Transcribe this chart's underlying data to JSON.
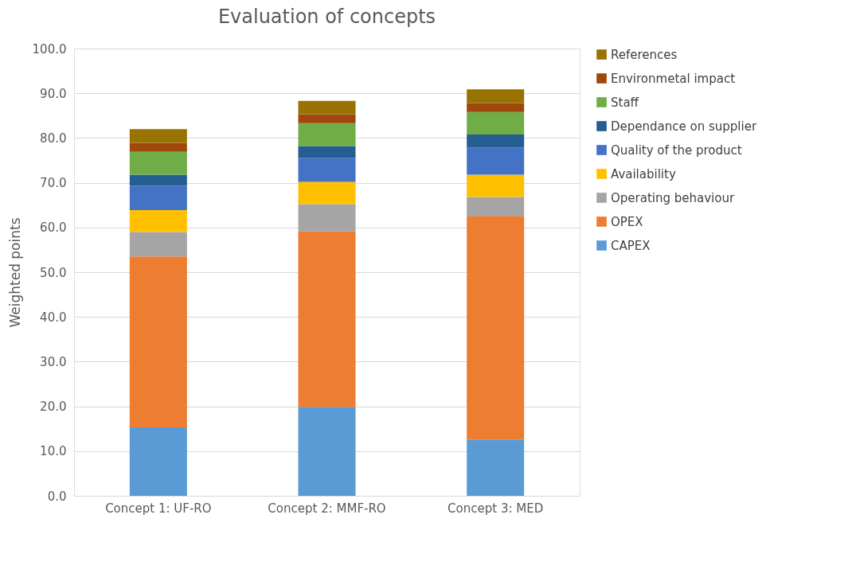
{
  "chart_data": {
    "type": "bar",
    "stacked": true,
    "title": "Evaluation of concepts",
    "ylabel": "Weighted points",
    "categories": [
      "Concept 1: UF-RO",
      "Concept 2: MMF-RO",
      "Concept 3: MED"
    ],
    "series": [
      {
        "name": "CAPEX",
        "color": "#5b9bd5",
        "values": [
          15.3,
          19.9,
          12.6
        ]
      },
      {
        "name": "OPEX",
        "color": "#ed7d31",
        "values": [
          38.2,
          39.2,
          50.0
        ]
      },
      {
        "name": "Operating behaviour",
        "color": "#a5a5a5",
        "values": [
          5.5,
          6.1,
          4.2
        ]
      },
      {
        "name": "Availability",
        "color": "#ffc000",
        "values": [
          4.9,
          5.0,
          5.0
        ]
      },
      {
        "name": "Quality of the product",
        "color": "#4472c4",
        "values": [
          5.4,
          5.4,
          6.1
        ]
      },
      {
        "name": "Dependance on supplier",
        "color": "#255e91",
        "values": [
          2.5,
          2.6,
          2.9
        ]
      },
      {
        "name": "Staff",
        "color": "#70ad47",
        "values": [
          5.1,
          5.1,
          5.0
        ]
      },
      {
        "name": "Environmetal impact",
        "color": "#9e480e",
        "values": [
          2.0,
          2.0,
          2.0
        ]
      },
      {
        "name": "References",
        "color": "#997300",
        "values": [
          3.1,
          3.0,
          3.1
        ]
      }
    ],
    "ylim": [
      0,
      100
    ],
    "yticks": [
      {
        "value": 0,
        "label": "0.0"
      },
      {
        "value": 10,
        "label": "10.0"
      },
      {
        "value": 20,
        "label": "20.0"
      },
      {
        "value": 30,
        "label": "30.0"
      },
      {
        "value": 40,
        "label": "40.0"
      },
      {
        "value": 50,
        "label": "50.0"
      },
      {
        "value": 60,
        "label": "60.0"
      },
      {
        "value": 70,
        "label": "70.0"
      },
      {
        "value": 80,
        "label": "80.0"
      },
      {
        "value": 90,
        "label": "90.0"
      },
      {
        "value": 100,
        "label": "100.0"
      }
    ],
    "grid": "y",
    "legend": "right"
  }
}
